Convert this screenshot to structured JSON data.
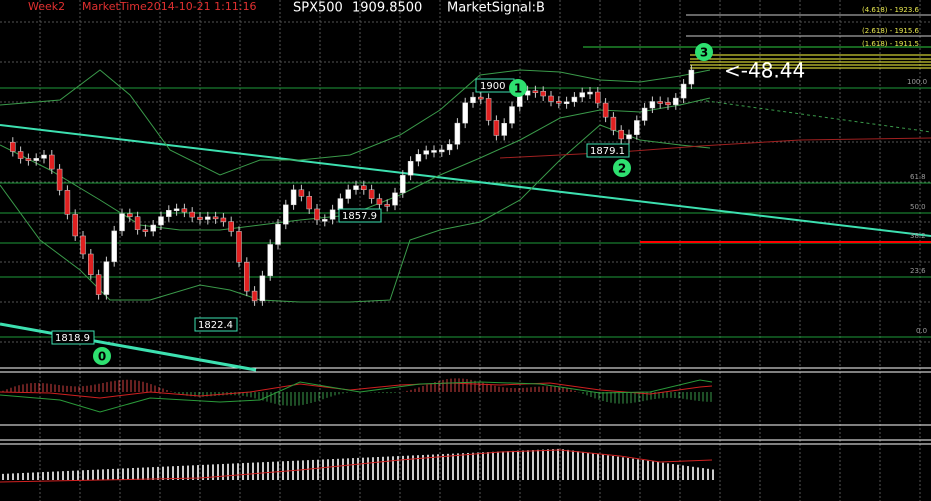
{
  "header": {
    "week": "Week2",
    "market_time": "MarketTime2014-10-21 1:11:16",
    "symbol": "SPX500",
    "price": "1909.8500",
    "signal": "MarketSignal:B"
  },
  "fib_labels": [
    "(4.618) - 1923.6",
    "(2.618) - 1915.6",
    "(1.618) - 1911.5"
  ],
  "level_labels": [
    "100.0",
    "61.8",
    "50.0",
    "38.2",
    "23.6",
    "0.0"
  ],
  "price_labels": [
    "1900",
    "1879.1",
    "1857.9",
    "1822.4",
    "1818.9"
  ],
  "wave_labels": [
    "1",
    "2",
    "3",
    "0"
  ],
  "distance": "<-48.44"
}
